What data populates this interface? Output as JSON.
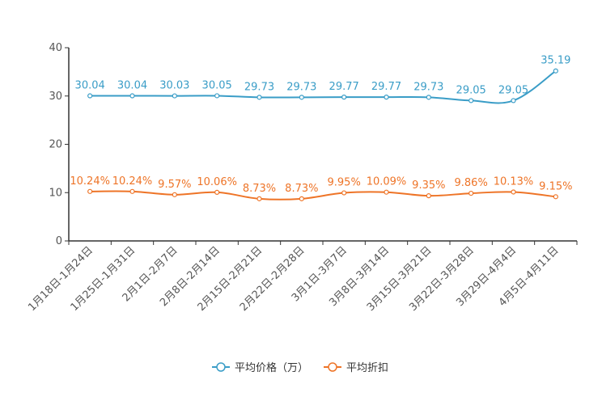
{
  "chart_data": {
    "type": "line",
    "title": "",
    "xlabel": "",
    "ylabel": "",
    "ylim": [
      0,
      40
    ],
    "yticks": [
      0,
      10,
      20,
      30,
      40
    ],
    "grid": false,
    "legend_position": "bottom-center",
    "categories": [
      "1月18日-1月24日",
      "1月25日-1月31日",
      "2月1日-2月7日",
      "2月8日-2月14日",
      "2月15日-2月21日",
      "2月22日-2月28日",
      "3月1日-3月7日",
      "3月8日-3月14日",
      "3月15日-3月21日",
      "3月22日-3月28日",
      "3月29日-4月4日",
      "4月5日-4月11日"
    ],
    "series": [
      {
        "name": "平均价格（万）",
        "color": "#3a9dc7",
        "values": [
          30.04,
          30.04,
          30.03,
          30.05,
          29.73,
          29.73,
          29.77,
          29.77,
          29.73,
          29.05,
          29.05,
          35.19
        ],
        "labels": [
          "30.04",
          "30.04",
          "30.03",
          "30.05",
          "29.73",
          "29.73",
          "29.77",
          "29.77",
          "29.73",
          "29.05",
          "29.05",
          "35.19"
        ]
      },
      {
        "name": "平均折扣",
        "color": "#ee7427",
        "values": [
          10.24,
          10.24,
          9.57,
          10.06,
          8.73,
          8.73,
          9.95,
          10.09,
          9.35,
          9.86,
          10.13,
          9.15
        ],
        "labels": [
          "10.24%",
          "10.24%",
          "9.57%",
          "10.06%",
          "8.73%",
          "8.73%",
          "9.95%",
          "10.09%",
          "9.35%",
          "9.86%",
          "10.13%",
          "9.15%"
        ]
      }
    ]
  }
}
